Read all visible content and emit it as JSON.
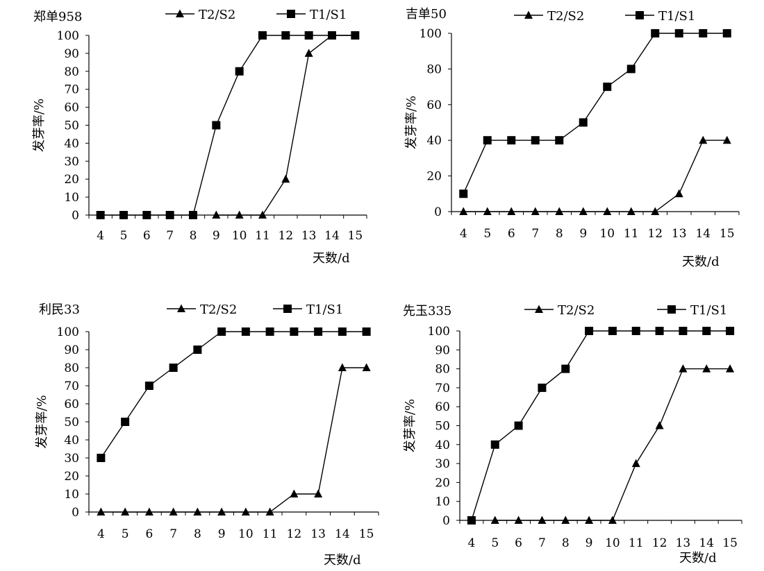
{
  "chart_data": [
    {
      "type": "line",
      "title": "郑单958",
      "xlabel": "天数/d",
      "ylabel": "发芽率/%",
      "x": [
        4,
        5,
        6,
        7,
        8,
        9,
        10,
        11,
        12,
        13,
        14,
        15
      ],
      "xlim": [
        3.5,
        15.5
      ],
      "ylim": [
        0,
        100
      ],
      "yticks": [
        0,
        10,
        20,
        30,
        40,
        50,
        60,
        70,
        80,
        90,
        100
      ],
      "grid": false,
      "legend_position": "top",
      "series": [
        {
          "name": "T2/S2",
          "marker": "triangle",
          "x": [
            9,
            10,
            11,
            12,
            13,
            14,
            15
          ],
          "values": [
            0,
            0,
            0,
            20,
            90,
            100,
            100
          ]
        },
        {
          "name": "T1/S1",
          "marker": "square",
          "x": [
            4,
            5,
            6,
            7,
            8,
            9,
            10,
            11,
            12,
            13,
            14,
            15
          ],
          "values": [
            0,
            0,
            0,
            0,
            0,
            50,
            80,
            100,
            100,
            100,
            100,
            100
          ]
        }
      ]
    },
    {
      "type": "line",
      "title": "吉单50",
      "xlabel": "天数/d",
      "ylabel": "发芽率/%",
      "x": [
        4,
        5,
        6,
        7,
        8,
        9,
        10,
        11,
        12,
        13,
        14,
        15
      ],
      "xlim": [
        3.5,
        15.5
      ],
      "ylim": [
        0,
        100
      ],
      "yticks": [
        0,
        20,
        40,
        60,
        80,
        100
      ],
      "grid": false,
      "legend_position": "top",
      "series": [
        {
          "name": "T2/S2",
          "marker": "triangle",
          "x": [
            4,
            5,
            6,
            7,
            8,
            9,
            10,
            11,
            12,
            13,
            14,
            15
          ],
          "values": [
            0,
            0,
            0,
            0,
            0,
            0,
            0,
            0,
            0,
            10,
            40,
            40
          ]
        },
        {
          "name": "T1/S1",
          "marker": "square",
          "x": [
            4,
            5,
            6,
            7,
            8,
            9,
            10,
            11,
            12,
            13,
            14,
            15
          ],
          "values": [
            10,
            40,
            40,
            40,
            40,
            50,
            70,
            80,
            100,
            100,
            100,
            100
          ]
        }
      ]
    },
    {
      "type": "line",
      "title": "利民33",
      "xlabel": "天数/d",
      "ylabel": "发芽率/%",
      "x": [
        4,
        5,
        6,
        7,
        8,
        9,
        10,
        11,
        12,
        13,
        14,
        15
      ],
      "xlim": [
        3.5,
        15.5
      ],
      "ylim": [
        0,
        100
      ],
      "yticks": [
        0,
        10,
        20,
        30,
        40,
        50,
        60,
        70,
        80,
        90,
        100
      ],
      "grid": false,
      "legend_position": "top",
      "series": [
        {
          "name": "T2/S2",
          "marker": "triangle",
          "x": [
            4,
            5,
            6,
            7,
            8,
            9,
            10,
            11,
            12,
            13,
            14,
            15
          ],
          "values": [
            0,
            0,
            0,
            0,
            0,
            0,
            0,
            0,
            10,
            10,
            80,
            80
          ]
        },
        {
          "name": "T1/S1",
          "marker": "square",
          "x": [
            4,
            5,
            6,
            7,
            8,
            9,
            10,
            11,
            12,
            13,
            14,
            15
          ],
          "values": [
            30,
            50,
            70,
            80,
            90,
            100,
            100,
            100,
            100,
            100,
            100,
            100
          ]
        }
      ]
    },
    {
      "type": "line",
      "title": "先玉335",
      "xlabel": "天数/d",
      "ylabel": "发芽率/%",
      "x": [
        4,
        5,
        6,
        7,
        8,
        9,
        10,
        11,
        12,
        13,
        14,
        15
      ],
      "xlim": [
        3.5,
        15.5
      ],
      "ylim": [
        0,
        100
      ],
      "yticks": [
        0,
        10,
        20,
        30,
        40,
        50,
        60,
        70,
        80,
        90,
        100
      ],
      "grid": false,
      "legend_position": "top",
      "series": [
        {
          "name": "T2/S2",
          "marker": "triangle",
          "x": [
            5,
            6,
            7,
            8,
            9,
            10,
            11,
            12,
            13,
            14,
            15
          ],
          "values": [
            0,
            0,
            0,
            0,
            0,
            0,
            30,
            50,
            80,
            80,
            80
          ]
        },
        {
          "name": "T1/S1",
          "marker": "square",
          "x": [
            4,
            5,
            6,
            7,
            8,
            9,
            10,
            11,
            12,
            13,
            14,
            15
          ],
          "values": [
            0,
            40,
            50,
            70,
            80,
            100,
            100,
            100,
            100,
            100,
            100,
            100
          ]
        }
      ]
    }
  ],
  "colors": {
    "line": "#000000",
    "marker": "#000000",
    "background": "#ffffff"
  }
}
